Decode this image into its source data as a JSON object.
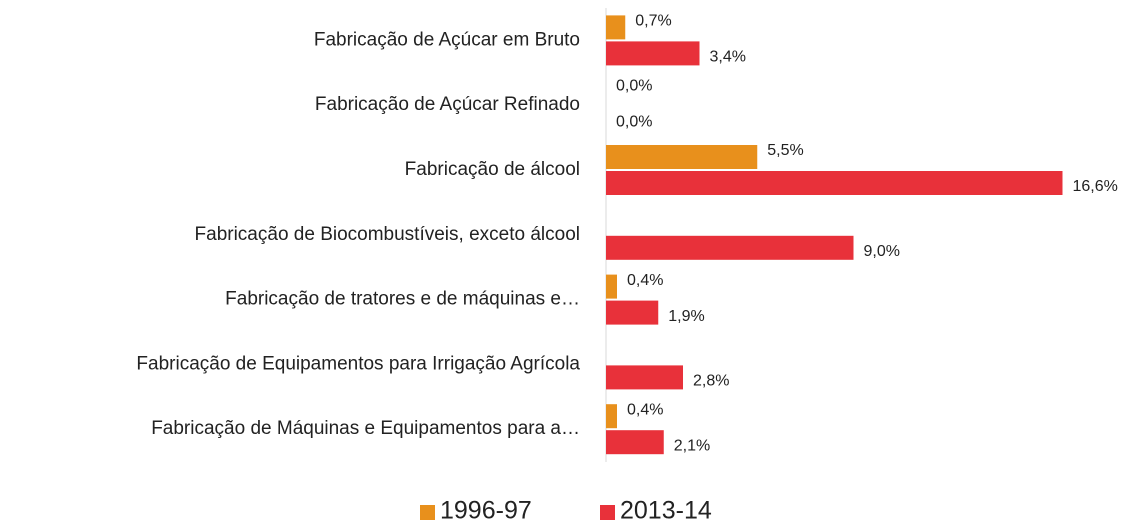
{
  "chart_data": {
    "type": "hbar",
    "categories": [
      "Fabricação de Açúcar em Bruto",
      "Fabricação de Açúcar Refinado",
      "Fabricação de álcool",
      "Fabricação de Biocombustíveis, exceto álcool",
      "Fabricação de tratores e de máquinas e…",
      "Fabricação de Equipamentos para Irrigação Agrícola",
      "Fabricação de Máquinas e Equipamentos para a…"
    ],
    "series": [
      {
        "name": "1996-97",
        "color": "#e8901c",
        "values": [
          0.7,
          0,
          5.5,
          null,
          0.4,
          null,
          0.4
        ],
        "value_labels": [
          "0,7%",
          "0,0%",
          "5,5%",
          null,
          "0,4%",
          null,
          "0,4%"
        ]
      },
      {
        "name": "2013-14",
        "color": "#e8313a",
        "values": [
          3.4,
          0,
          16.6,
          9.0,
          1.9,
          2.8,
          2.1
        ],
        "value_labels": [
          "3,4%",
          "0,0%",
          "16,6%",
          "9,0%",
          "1,9%",
          "2,8%",
          "2,1%"
        ]
      }
    ]
  }
}
